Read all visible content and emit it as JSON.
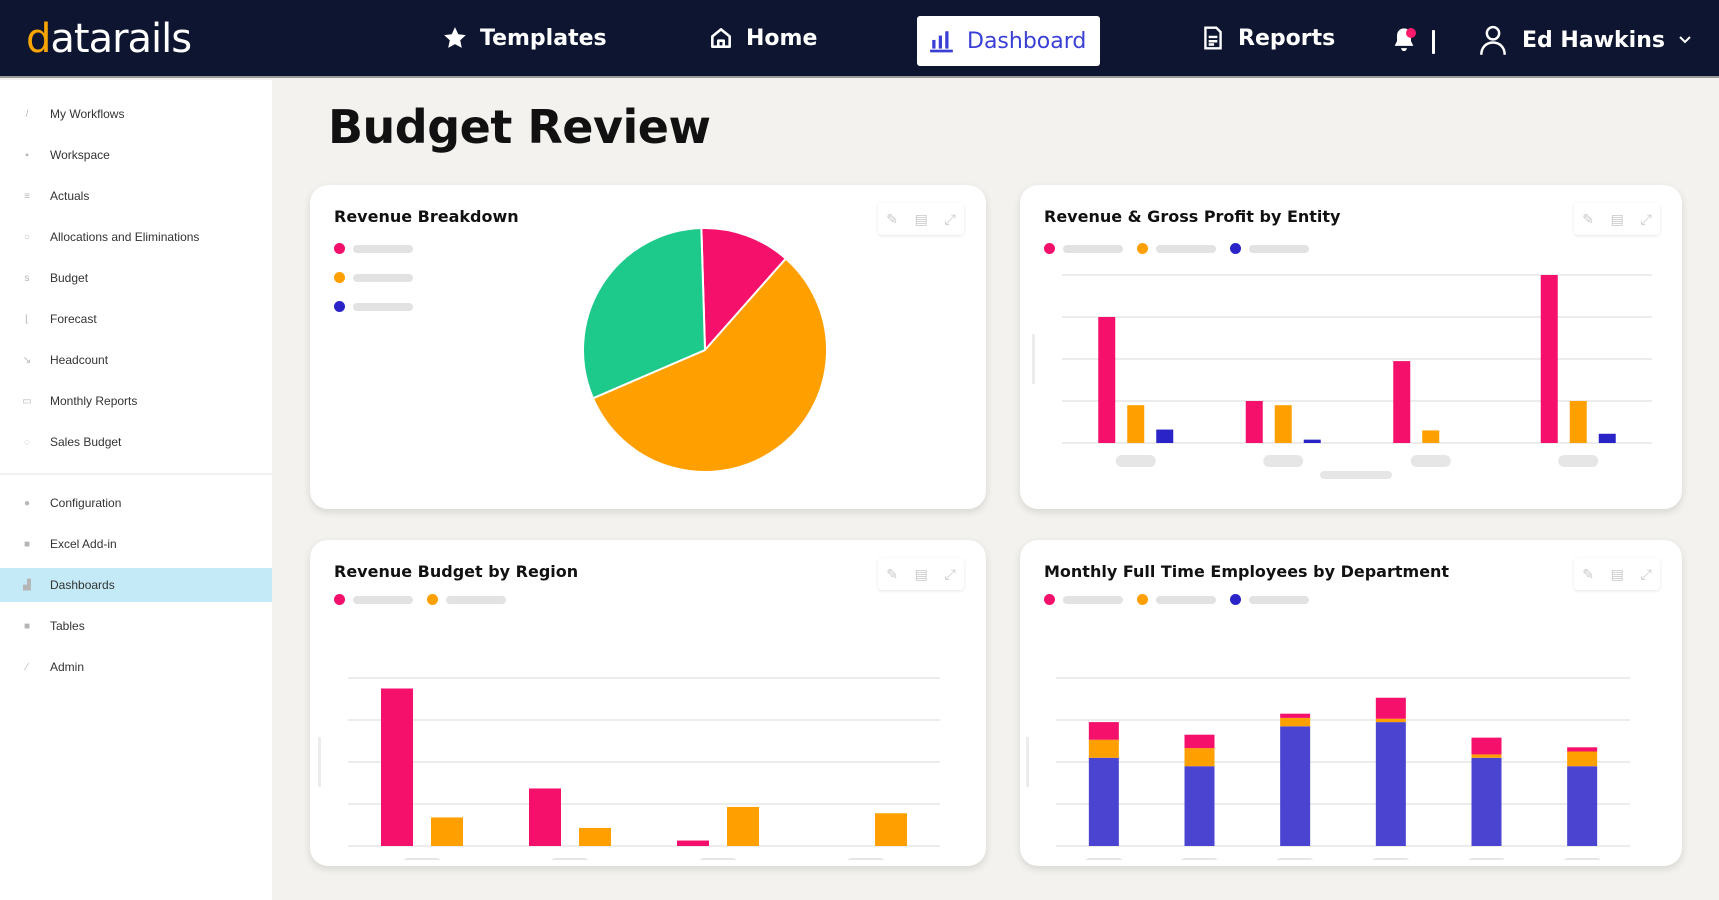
{
  "app": {
    "logo_text_accent": "d",
    "logo_text_rest": "atarails"
  },
  "topnav": {
    "items": [
      {
        "label": "Templates",
        "icon": "star-icon"
      },
      {
        "label": "Home",
        "icon": "home-icon"
      },
      {
        "label": "Dashboard",
        "icon": "bar-chart-icon",
        "active": true
      },
      {
        "label": "Reports",
        "icon": "document-icon"
      }
    ],
    "notifications_icon": "bell-icon",
    "user_name": "Ed Hawkins",
    "user_icon": "user-icon"
  },
  "sidebar": {
    "items": [
      {
        "label": "My Workflows",
        "icon": "pencil-icon"
      },
      {
        "label": "Workspace",
        "icon": "grid-icon"
      },
      {
        "label": "Actuals",
        "icon": "list-icon"
      },
      {
        "label": "Allocations and Eliminations",
        "icon": "circle-icon"
      },
      {
        "label": "Budget",
        "icon": "dollar-icon"
      },
      {
        "label": "Forecast",
        "icon": "chart-icon"
      },
      {
        "label": "Headcount",
        "icon": "person-icon"
      },
      {
        "label": "Monthly Reports",
        "icon": "folder-icon"
      },
      {
        "label": "Sales Budget",
        "icon": "clock-icon"
      }
    ],
    "bottom_items": [
      {
        "label": "Configuration",
        "icon": "gear-icon"
      },
      {
        "label": "Excel Add-in",
        "icon": "excel-icon"
      },
      {
        "label": "Dashboards",
        "icon": "bar-chart-icon",
        "active": true
      },
      {
        "label": "Tables",
        "icon": "table-icon"
      },
      {
        "label": "Admin",
        "icon": "wrench-icon"
      }
    ]
  },
  "page": {
    "title": "Budget Review"
  },
  "colors": {
    "pink": "#f5106c",
    "orange": "#ff9f00",
    "blue": "#2a24c8",
    "stack_blue": "#4b44d1",
    "green": "#1ec98c",
    "nav_bg": "#0d1530",
    "active_side": "#c3eaf6"
  },
  "card_tools": [
    "pencil-icon",
    "copy-icon",
    "expand-icon"
  ],
  "chart_data": [
    {
      "id": "revenue-breakdown",
      "type": "pie",
      "title": "Revenue Breakdown",
      "legend_placement": "top-left",
      "slices": [
        {
          "name": "",
          "value": 12,
          "color": "#f5106c"
        },
        {
          "name": "",
          "value": 57,
          "color": "#ff9f00"
        },
        {
          "name": "",
          "value": 31,
          "color": "#1ec98c"
        }
      ],
      "legend": [
        {
          "color": "#f5106c"
        },
        {
          "color": "#ff9f00"
        },
        {
          "color": "#2a24c8"
        }
      ]
    },
    {
      "id": "revenue-gross-profit-entity",
      "type": "bar",
      "title": "Revenue & Gross Profit by Entity",
      "legend_placement": "top-left",
      "categories": [
        "",
        "",
        "",
        ""
      ],
      "ylim": [
        0,
        4
      ],
      "grid": true,
      "series": [
        {
          "name": "",
          "color": "#f5106c",
          "values": [
            3.0,
            1.0,
            1.95,
            4.0
          ]
        },
        {
          "name": "",
          "color": "#ff9f00",
          "values": [
            0.9,
            0.9,
            0.3,
            1.0
          ]
        },
        {
          "name": "",
          "color": "#2a24c8",
          "values": [
            0.32,
            0.08,
            0,
            0.22
          ]
        }
      ]
    },
    {
      "id": "revenue-budget-region",
      "type": "bar",
      "title": "Revenue Budget by Region",
      "legend_placement": "top-left",
      "categories": [
        "",
        "",
        "",
        ""
      ],
      "ylim": [
        0,
        4
      ],
      "grid": true,
      "series": [
        {
          "name": "",
          "color": "#f5106c",
          "values": [
            3.75,
            1.37,
            0.13,
            0
          ]
        },
        {
          "name": "",
          "color": "#ff9f00",
          "values": [
            0.68,
            0.43,
            0.93,
            0.78
          ]
        }
      ]
    },
    {
      "id": "monthly-fte-department",
      "type": "bar",
      "stacked": true,
      "title": "Monthly Full Time Employees by Department",
      "legend_placement": "top-left",
      "categories": [
        "",
        "",
        "",
        "",
        "",
        ""
      ],
      "ylim": [
        0,
        4
      ],
      "grid": true,
      "series": [
        {
          "name": "",
          "color": "#4b44d1",
          "values": [
            2.1,
            1.9,
            2.85,
            2.95,
            2.1,
            1.9
          ]
        },
        {
          "name": "",
          "color": "#ff9f00",
          "values": [
            0.43,
            0.43,
            0.2,
            0.08,
            0.08,
            0.35
          ]
        },
        {
          "name": "",
          "color": "#f5106c",
          "values": [
            0.42,
            0.32,
            0.1,
            0.5,
            0.4,
            0.1
          ]
        }
      ],
      "legend": [
        {
          "color": "#f5106c"
        },
        {
          "color": "#ff9f00"
        },
        {
          "color": "#2a24c8"
        }
      ]
    }
  ]
}
